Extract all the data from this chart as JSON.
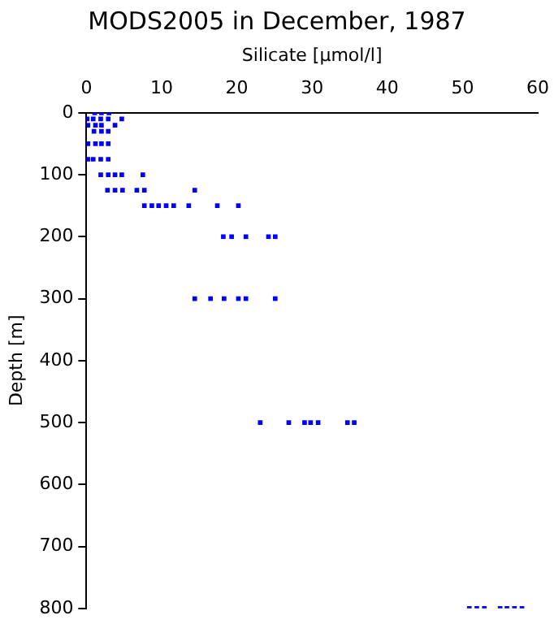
{
  "chart_data": {
    "type": "scatter",
    "title": "MODS2005 in December, 1987",
    "xlabel": "Silicate [µmol/l]",
    "ylabel": "Depth [m]",
    "series": [
      {
        "color": "#0000ff",
        "x": [
          1.1,
          2.0,
          3.0,
          0.1,
          0.9,
          1.9,
          2.9,
          4.7,
          0.2,
          1.2,
          2.0,
          3.8,
          1.0,
          2.0,
          2.9,
          0.2,
          1.2,
          2.0,
          2.9,
          0.2,
          0.9,
          1.9,
          2.9,
          1.9,
          2.9,
          3.8,
          4.7,
          7.5,
          2.8,
          3.8,
          4.8,
          6.7,
          7.7,
          14.4,
          7.7,
          8.7,
          9.6,
          10.6,
          11.6,
          13.6,
          17.4,
          20.2,
          18.2,
          19.3,
          21.2,
          24.2,
          25.1,
          14.4,
          16.5,
          18.3,
          20.2,
          21.2,
          25.1,
          23.1,
          26.9,
          29.0,
          29.8,
          30.8,
          34.7,
          35.6,
          50.9,
          51.9,
          52.9,
          55.0,
          55.9,
          56.9,
          57.9
        ],
        "values": [
          0,
          0,
          0,
          10,
          10,
          10,
          10,
          10,
          20,
          20,
          20,
          20,
          30,
          30,
          30,
          50,
          50,
          50,
          50,
          75,
          75,
          75,
          75,
          100,
          100,
          100,
          100,
          100,
          125,
          125,
          125,
          125,
          125,
          125,
          150,
          150,
          150,
          150,
          150,
          150,
          150,
          150,
          200,
          200,
          200,
          200,
          200,
          300,
          300,
          300,
          300,
          300,
          300,
          500,
          500,
          500,
          500,
          500,
          500,
          500,
          800,
          800,
          800,
          800,
          800,
          800,
          800
        ]
      }
    ],
    "xlim": [
      0,
      60
    ],
    "xticks": [
      0,
      10,
      20,
      30,
      40,
      50,
      60
    ],
    "ylim": [
      800,
      0
    ],
    "yticks": [
      0,
      100,
      200,
      300,
      400,
      500,
      600,
      700,
      800
    ],
    "grid": false,
    "legend": false,
    "marker": "square"
  }
}
